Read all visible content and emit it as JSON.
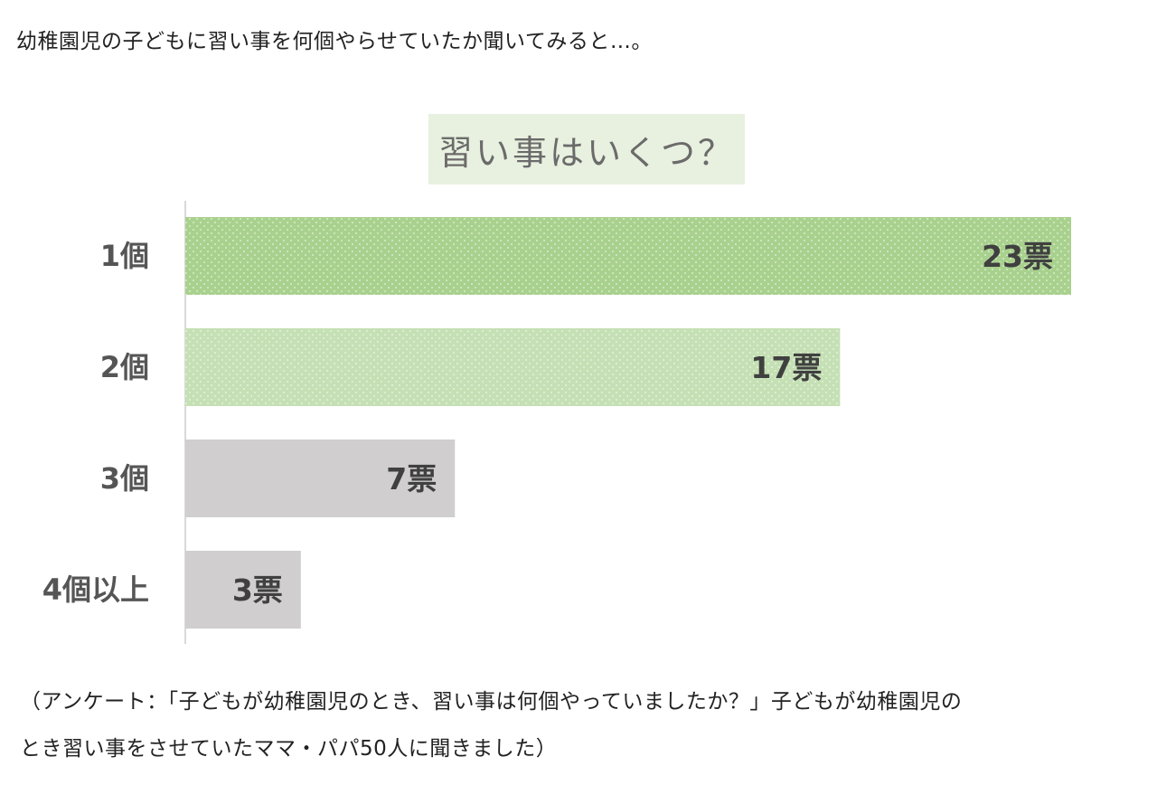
{
  "intro_text": "幼稚園児の子どもに習い事を何個やらせていたか聞いてみると…。",
  "chart_data": {
    "type": "bar",
    "orientation": "horizontal",
    "title": "習い事はいくつ？",
    "categories": [
      "1個",
      "2個",
      "3個",
      "4個以上"
    ],
    "values": [
      23,
      17,
      7,
      3
    ],
    "value_labels": [
      "23票",
      "17票",
      "7票",
      "3票"
    ],
    "bar_colors": [
      "#a9d18e",
      "#c5e0b4",
      "#d0cece",
      "#d0cece"
    ],
    "xlim": [
      0,
      23
    ],
    "grid": false,
    "legend": "none"
  },
  "note": {
    "line1": "（アンケート：「子どもが幼稚園児のとき、習い事は何個やっていましたか？」子どもが幼稚園児の",
    "line2": "とき習い事をさせていたママ・パパ50人に聞きました）"
  }
}
